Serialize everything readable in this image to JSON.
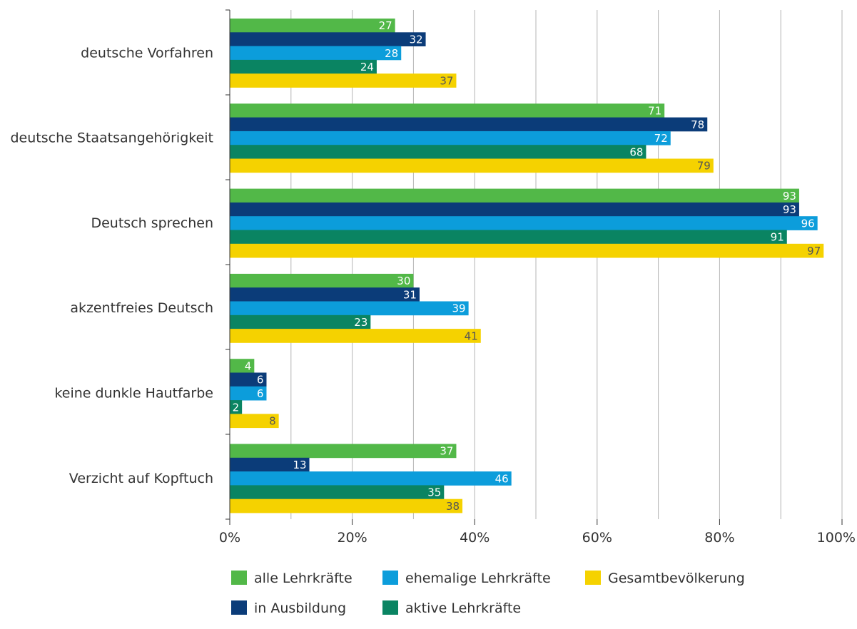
{
  "chart_data": {
    "type": "bar",
    "orientation": "horizontal",
    "title": "",
    "xlabel": "",
    "ylabel": "",
    "xlim": [
      0,
      100
    ],
    "grid": true,
    "legend_position": "bottom",
    "categories": [
      "deutsche Vorfahren",
      "deutsche Staatsangehörigkeit",
      "Deutsch sprechen",
      "akzentfreies Deutsch",
      "keine dunkle Hautfarbe",
      "Verzicht auf Kopftuch"
    ],
    "x_ticks": [
      "0%",
      "20%",
      "40%",
      "60%",
      "80%",
      "100%"
    ],
    "series": [
      {
        "name": "alle Lehrkräfte",
        "color": "#52b848",
        "label_color": "#ffffff",
        "values": [
          27,
          71,
          93,
          30,
          4,
          37
        ]
      },
      {
        "name": "in Ausbildung",
        "color": "#0b3c79",
        "label_color": "#ffffff",
        "values": [
          32,
          78,
          93,
          31,
          6,
          13
        ]
      },
      {
        "name": "ehemalige Lehrkräfte",
        "color": "#0c9ddb",
        "label_color": "#ffffff",
        "values": [
          28,
          72,
          96,
          39,
          6,
          46
        ]
      },
      {
        "name": "aktive Lehrkräfte",
        "color": "#0a8462",
        "label_color": "#ffffff",
        "values": [
          24,
          68,
          91,
          23,
          2,
          35
        ]
      },
      {
        "name": "Gesamtbevölkerung",
        "color": "#f5d200",
        "label_color": "#555555",
        "values": [
          37,
          79,
          97,
          41,
          8,
          38
        ]
      }
    ],
    "legend_order": [
      0,
      2,
      4,
      1,
      3
    ]
  },
  "colors": {
    "gridline": "#b4b4b4",
    "axis": "#333333",
    "text": "#333333"
  }
}
